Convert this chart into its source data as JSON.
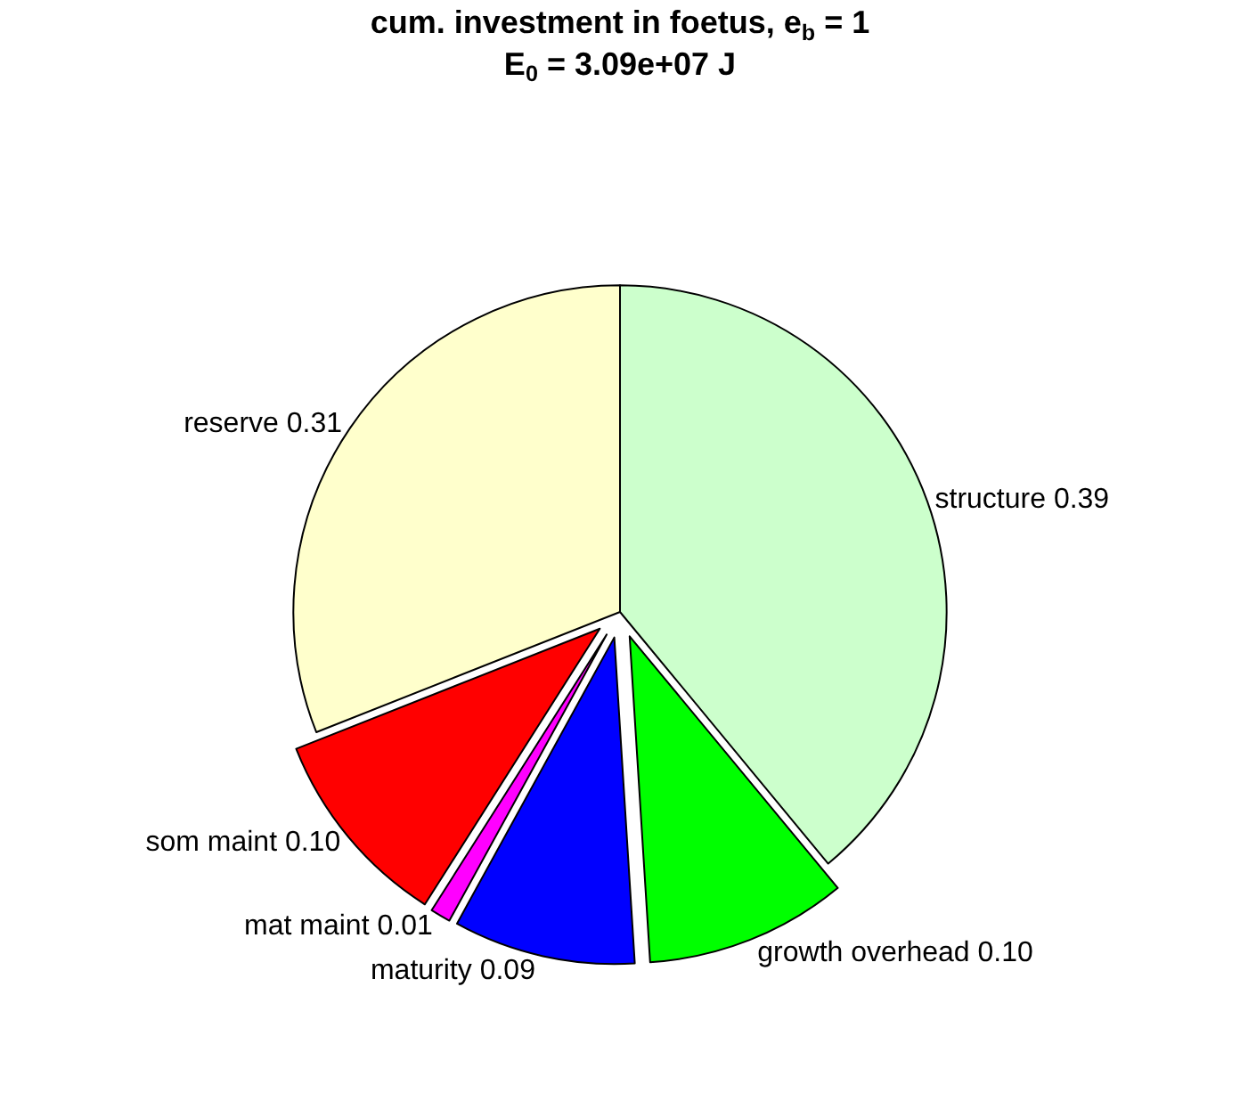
{
  "chart_data": {
    "type": "pie",
    "title": "cum. investment in foetus, e$_{b}$ = 1",
    "subtitle": "E$_{0}$ = 3.09e+07 J",
    "categories": [
      "structure",
      "growth overhead",
      "maturity",
      "mat maint",
      "som maint",
      "reserve"
    ],
    "values": [
      0.39,
      0.1,
      0.09,
      0.01,
      0.1,
      0.31
    ],
    "value_labels": [
      "0.39",
      "0.10",
      "0.09",
      "0.01",
      "0.10",
      "0.31"
    ],
    "colors": [
      "#ccffcc",
      "#00ff00",
      "#0000ff",
      "#ff00ff",
      "#ff0000",
      "#ffffcc"
    ],
    "legend": false
  }
}
